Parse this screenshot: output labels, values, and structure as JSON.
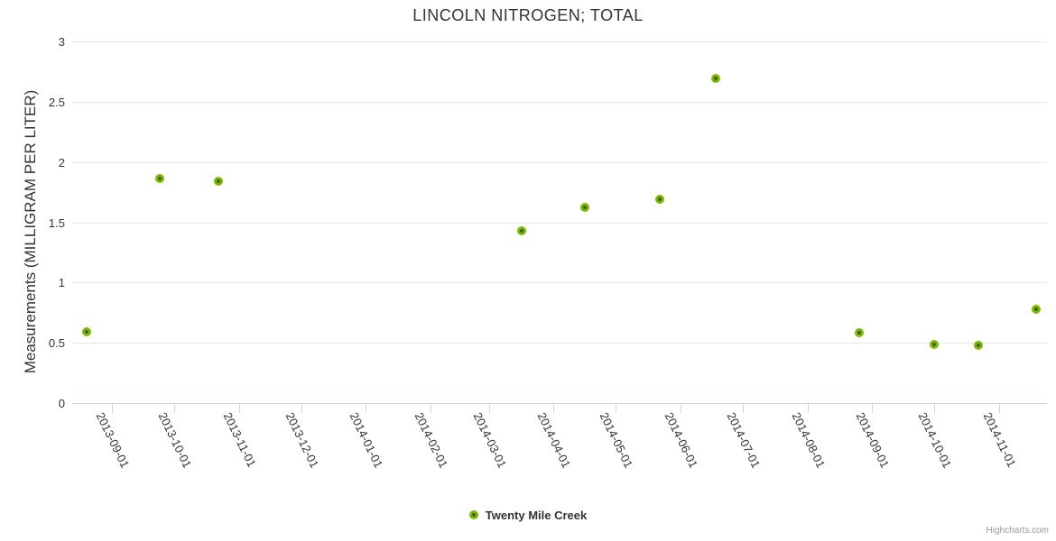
{
  "title": "LINCOLN NITROGEN; TOTAL",
  "y_axis": {
    "title": "Measurements (MILLIGRAM PER LITER)",
    "tick_labels": [
      "0",
      "0.5",
      "1",
      "1.5",
      "2",
      "2.5",
      "3"
    ]
  },
  "x_axis": {
    "tick_labels": [
      "2013-09-01",
      "2013-10-01",
      "2013-11-01",
      "2013-12-01",
      "2014-01-01",
      "2014-02-01",
      "2014-03-01",
      "2014-04-01",
      "2014-05-01",
      "2014-06-01",
      "2014-07-01",
      "2014-08-01",
      "2014-09-01",
      "2014-10-01",
      "2014-11-01"
    ]
  },
  "legend": {
    "items": [
      {
        "label": "Twenty Mile Creek",
        "marker": "green-dot"
      }
    ]
  },
  "credits": {
    "label": "Highcharts.com"
  },
  "colors": {
    "marker_ring": "#7fb800",
    "marker_center": "#336605",
    "gridline": "#e6e6e6",
    "axis_line": "#ccd6eb",
    "text": "#333333",
    "credits_text": "#999999"
  },
  "chart_data": {
    "type": "scatter",
    "title": "LINCOLN NITROGEN; TOTAL",
    "xlabel": "",
    "ylabel": "Measurements (MILLIGRAM PER LITER)",
    "ylim": [
      0,
      3
    ],
    "yticks": [
      0,
      0.5,
      1,
      1.5,
      2,
      2.5,
      3
    ],
    "x_range": [
      "2013-08-13",
      "2014-11-24"
    ],
    "xticks": [
      "2013-09-01",
      "2013-10-01",
      "2013-11-01",
      "2013-12-01",
      "2014-01-01",
      "2014-02-01",
      "2014-03-01",
      "2014-04-01",
      "2014-05-01",
      "2014-06-01",
      "2014-07-01",
      "2014-08-01",
      "2014-09-01",
      "2014-10-01",
      "2014-11-01"
    ],
    "grid": true,
    "legend_position": "bottom-center",
    "series": [
      {
        "name": "Twenty Mile Creek",
        "points": [
          {
            "x": "2013-08-20",
            "y": 0.59
          },
          {
            "x": "2013-09-24",
            "y": 1.86
          },
          {
            "x": "2013-10-22",
            "y": 1.84
          },
          {
            "x": "2014-03-17",
            "y": 1.43
          },
          {
            "x": "2014-04-16",
            "y": 1.62
          },
          {
            "x": "2014-05-22",
            "y": 1.69
          },
          {
            "x": "2014-06-18",
            "y": 2.69
          },
          {
            "x": "2014-08-26",
            "y": 0.58
          },
          {
            "x": "2014-10-01",
            "y": 0.49
          },
          {
            "x": "2014-10-22",
            "y": 0.48
          },
          {
            "x": "2014-11-19",
            "y": 0.78
          }
        ]
      }
    ]
  }
}
